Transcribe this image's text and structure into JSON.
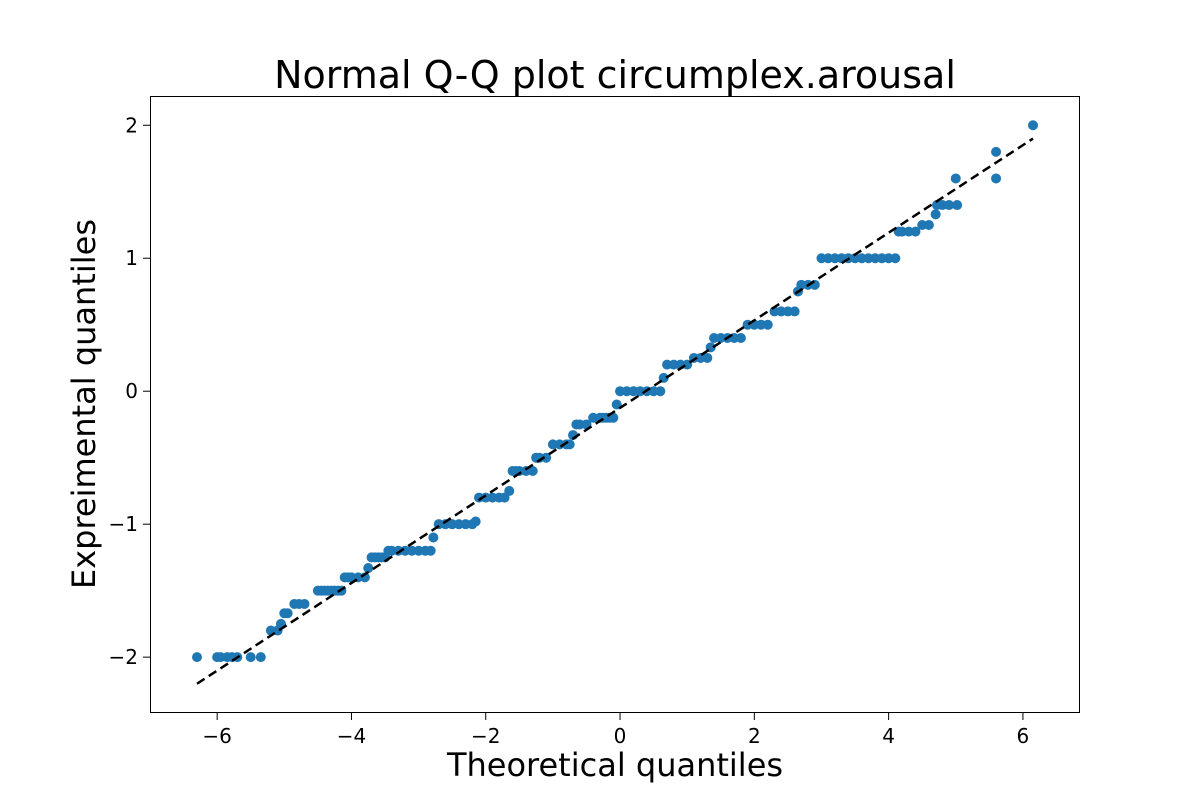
{
  "chart_data": {
    "type": "scatter",
    "title": "Normal Q-Q plot circumplex.arousal",
    "xlabel": "Theoretical quantiles",
    "ylabel": "Expreimental quantiles",
    "xlim": [
      -7,
      6.85
    ],
    "ylim": [
      -2.42,
      2.22
    ],
    "xticks": [
      -6,
      -4,
      -2,
      0,
      2,
      4,
      6
    ],
    "xtick_labels": [
      "−6",
      "−4",
      "−2",
      "0",
      "2",
      "4",
      "6"
    ],
    "yticks": [
      -2,
      -1,
      0,
      1,
      2
    ],
    "ytick_labels": [
      "−2",
      "−1",
      "0",
      "1",
      "2"
    ],
    "grid": false,
    "marker_color": "#1f77b4",
    "reference_line": {
      "style": "dashed",
      "color": "#000000",
      "x": [
        -6.3,
        6.15
      ],
      "y": [
        -2.2,
        1.9
      ]
    },
    "series": [
      {
        "x": [
          -6.3,
          -6.0,
          -5.95,
          -5.85,
          -5.78,
          -5.7,
          -5.5,
          -5.35,
          -5.2,
          -5.1,
          -5.05,
          -5.0,
          -4.95,
          -4.85,
          -4.78,
          -4.7,
          -4.5,
          -4.45,
          -4.4,
          -4.35,
          -4.3,
          -4.25,
          -4.2,
          -4.15,
          -4.1,
          -4.05,
          -4.0,
          -3.9,
          -3.8,
          -3.75,
          -3.7,
          -3.65,
          -3.6,
          -3.55,
          -3.5,
          -3.45,
          -3.4,
          -3.3,
          -3.2,
          -3.1,
          -3.0,
          -2.9,
          -2.82,
          -2.78,
          -2.7,
          -2.6,
          -2.5,
          -2.4,
          -2.3,
          -2.2,
          -2.15,
          -2.1,
          -2.0,
          -1.9,
          -1.8,
          -1.72,
          -1.65,
          -1.6,
          -1.55,
          -1.5,
          -1.4,
          -1.3,
          -1.25,
          -1.2,
          -1.1,
          -1.0,
          -0.9,
          -0.8,
          -0.75,
          -0.7,
          -0.65,
          -0.6,
          -0.5,
          -0.4,
          -0.3,
          -0.25,
          -0.2,
          -0.15,
          -0.1,
          -0.05,
          0.0,
          0.1,
          0.2,
          0.3,
          0.4,
          0.5,
          0.6,
          0.65,
          0.7,
          0.8,
          0.9,
          1.0,
          1.1,
          1.2,
          1.3,
          1.35,
          1.4,
          1.5,
          1.6,
          1.7,
          1.8,
          1.9,
          2.0,
          2.1,
          2.2,
          2.3,
          2.4,
          2.5,
          2.6,
          2.65,
          2.7,
          2.8,
          2.9,
          3.0,
          3.1,
          3.2,
          3.3,
          3.4,
          3.5,
          3.6,
          3.7,
          3.8,
          3.9,
          4.0,
          4.1,
          4.15,
          4.2,
          4.3,
          4.4,
          4.5,
          4.6,
          4.7,
          4.72,
          4.8,
          4.9,
          5.0,
          5.02,
          5.6,
          5.6,
          6.15
        ],
        "y": [
          -2.0,
          -2.0,
          -2.0,
          -2.0,
          -2.0,
          -2.0,
          -2.0,
          -2.0,
          -1.8,
          -1.8,
          -1.75,
          -1.67,
          -1.67,
          -1.6,
          -1.6,
          -1.6,
          -1.5,
          -1.5,
          -1.5,
          -1.5,
          -1.5,
          -1.5,
          -1.5,
          -1.5,
          -1.4,
          -1.4,
          -1.4,
          -1.4,
          -1.4,
          -1.33,
          -1.25,
          -1.25,
          -1.25,
          -1.25,
          -1.25,
          -1.2,
          -1.2,
          -1.2,
          -1.2,
          -1.2,
          -1.2,
          -1.2,
          -1.2,
          -1.1,
          -1.0,
          -1.0,
          -1.0,
          -1.0,
          -1.0,
          -1.0,
          -0.98,
          -0.8,
          -0.8,
          -0.8,
          -0.8,
          -0.8,
          -0.75,
          -0.6,
          -0.6,
          -0.6,
          -0.6,
          -0.6,
          -0.5,
          -0.5,
          -0.5,
          -0.4,
          -0.4,
          -0.4,
          -0.4,
          -0.33,
          -0.25,
          -0.25,
          -0.25,
          -0.2,
          -0.2,
          -0.2,
          -0.2,
          -0.2,
          -0.2,
          -0.1,
          0.0,
          0.0,
          0.0,
          0.0,
          0.0,
          0.0,
          0.0,
          0.1,
          0.2,
          0.2,
          0.2,
          0.2,
          0.25,
          0.25,
          0.25,
          0.33,
          0.4,
          0.4,
          0.4,
          0.4,
          0.4,
          0.5,
          0.5,
          0.5,
          0.5,
          0.6,
          0.6,
          0.6,
          0.6,
          0.75,
          0.8,
          0.8,
          0.8,
          1.0,
          1.0,
          1.0,
          1.0,
          1.0,
          1.0,
          1.0,
          1.0,
          1.0,
          1.0,
          1.0,
          1.0,
          1.2,
          1.2,
          1.2,
          1.2,
          1.25,
          1.25,
          1.33,
          1.4,
          1.4,
          1.4,
          1.6,
          1.4,
          1.6,
          1.8,
          2.0
        ]
      }
    ]
  }
}
